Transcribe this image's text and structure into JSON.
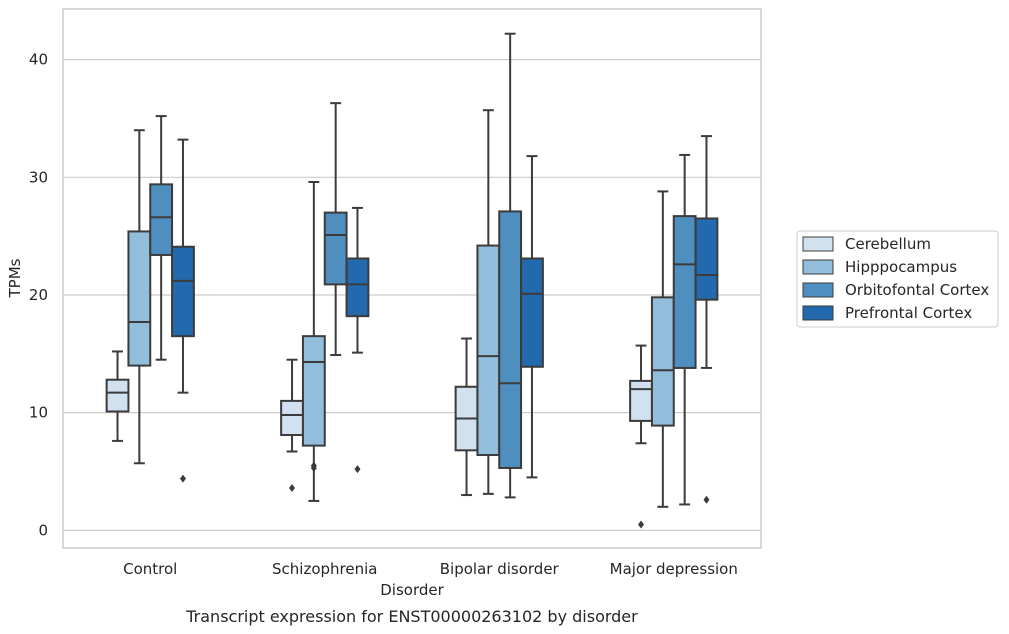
{
  "chart_data": {
    "type": "boxplot",
    "caption": "Transcript expression for ENST00000263102 by disorder",
    "xlabel": "Disorder",
    "ylabel": "TPMs",
    "ylim": [
      -1.5,
      44.3
    ],
    "yticks": [
      0,
      10,
      20,
      30,
      40
    ],
    "grid": "horizontal",
    "legend_position": "right",
    "categories": [
      "Control",
      "Schizophrenia",
      "Bipolar disorder",
      "Major depression"
    ],
    "series": [
      {
        "name": "Cerebellum",
        "color": "#d1e1f0",
        "boxes": [
          {
            "whisker_low": 7.6,
            "q1": 10.1,
            "median": 11.7,
            "q3": 12.8,
            "whisker_high": 15.2,
            "outliers": []
          },
          {
            "whisker_low": 6.7,
            "q1": 8.1,
            "median": 9.8,
            "q3": 11.0,
            "whisker_high": 14.5,
            "outliers": [
              3.6
            ]
          },
          {
            "whisker_low": 3.0,
            "q1": 6.8,
            "median": 9.5,
            "q3": 12.2,
            "whisker_high": 16.3,
            "outliers": []
          },
          {
            "whisker_low": 7.4,
            "q1": 9.3,
            "median": 12.0,
            "q3": 12.7,
            "whisker_high": 15.7,
            "outliers": [
              0.5
            ]
          }
        ]
      },
      {
        "name": "Hipppocampus",
        "color": "#93bedb",
        "boxes": [
          {
            "whisker_low": 5.7,
            "q1": 14.0,
            "median": 17.7,
            "q3": 25.4,
            "whisker_high": 34.0,
            "outliers": []
          },
          {
            "whisker_low": 2.5,
            "q1": 7.2,
            "median": 14.3,
            "q3": 16.5,
            "whisker_high": 29.6,
            "outliers": [
              5.3,
              5.5
            ]
          },
          {
            "whisker_low": 3.1,
            "q1": 6.4,
            "median": 14.8,
            "q3": 24.2,
            "whisker_high": 35.7,
            "outliers": []
          },
          {
            "whisker_low": 2.0,
            "q1": 8.9,
            "median": 13.6,
            "q3": 19.8,
            "whisker_high": 28.8,
            "outliers": []
          }
        ]
      },
      {
        "name": "Orbitofontal Cortex",
        "color": "#4f8fc0",
        "boxes": [
          {
            "whisker_low": 14.5,
            "q1": 23.4,
            "median": 26.6,
            "q3": 29.4,
            "whisker_high": 35.2,
            "outliers": []
          },
          {
            "whisker_low": 14.9,
            "q1": 20.9,
            "median": 25.1,
            "q3": 27.0,
            "whisker_high": 36.3,
            "outliers": []
          },
          {
            "whisker_low": 2.8,
            "q1": 5.3,
            "median": 12.5,
            "q3": 27.1,
            "whisker_high": 42.2,
            "outliers": []
          },
          {
            "whisker_low": 2.2,
            "q1": 13.8,
            "median": 22.6,
            "q3": 26.7,
            "whisker_high": 31.9,
            "outliers": []
          }
        ]
      },
      {
        "name": "Prefrontal Cortex",
        "color": "#2369ad",
        "boxes": [
          {
            "whisker_low": 11.7,
            "q1": 16.5,
            "median": 21.2,
            "q3": 24.1,
            "whisker_high": 33.2,
            "outliers": [
              4.4
            ]
          },
          {
            "whisker_low": 15.1,
            "q1": 18.2,
            "median": 20.9,
            "q3": 23.1,
            "whisker_high": 27.4,
            "outliers": [
              5.2
            ]
          },
          {
            "whisker_low": 4.5,
            "q1": 13.9,
            "median": 20.1,
            "q3": 23.1,
            "whisker_high": 31.8,
            "outliers": []
          },
          {
            "whisker_low": 13.8,
            "q1": 19.6,
            "median": 21.7,
            "q3": 26.5,
            "whisker_high": 33.5,
            "outliers": [
              2.6
            ]
          }
        ]
      }
    ]
  }
}
